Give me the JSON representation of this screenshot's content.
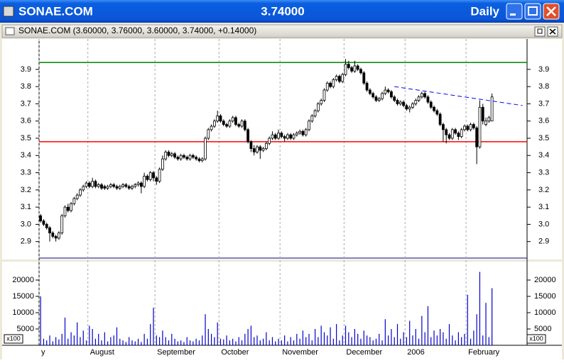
{
  "window": {
    "symbol": "SONAE.COM",
    "price": "3.74000",
    "period": "Daily"
  },
  "subwindow": {
    "title": "SONAE.COM (3.60000, 3.76000, 3.60000, 3.74000, +0.14000)"
  },
  "chart_data": {
    "type": "candlestick",
    "grid": true,
    "xlim": [
      -0.5,
      159.5
    ],
    "xticks": [
      {
        "value": -0.5,
        "label": "y"
      },
      {
        "value": 15.5,
        "label": "August"
      },
      {
        "value": 37.5,
        "label": "September"
      },
      {
        "value": 58.5,
        "label": "October"
      },
      {
        "value": 78.5,
        "label": "November"
      },
      {
        "value": 99.5,
        "label": "December"
      },
      {
        "value": 119.5,
        "label": "2006"
      },
      {
        "value": 139.5,
        "label": "February"
      }
    ],
    "ylim": [
      2.8,
      4.06
    ],
    "yticks": [
      {
        "value": 2.9,
        "label": "2.9"
      },
      {
        "value": 3,
        "label": "3.0"
      },
      {
        "value": 3.1,
        "label": "3.1"
      },
      {
        "value": 3.2,
        "label": "3.2"
      },
      {
        "value": 3.3,
        "label": "3.3"
      },
      {
        "value": 3.4,
        "label": "3.4"
      },
      {
        "value": 3.5,
        "label": "3.5"
      },
      {
        "value": 3.6,
        "label": "3.6"
      },
      {
        "value": 3.7,
        "label": "3.7"
      },
      {
        "value": 3.8,
        "label": "3.8"
      },
      {
        "value": 3.9,
        "label": "3.9"
      }
    ],
    "ohlc": [
      [
        3.05,
        3.06,
        3.01,
        3.02
      ],
      [
        3.02,
        3.03,
        2.99,
        3.0
      ],
      [
        3.0,
        3.01,
        2.97,
        2.98
      ],
      [
        2.98,
        2.99,
        2.9,
        2.95
      ],
      [
        2.95,
        2.96,
        2.92,
        2.93
      ],
      [
        2.93,
        2.94,
        2.9,
        2.92
      ],
      [
        2.92,
        2.96,
        2.91,
        2.95
      ],
      [
        2.95,
        3.06,
        2.94,
        3.05
      ],
      [
        3.05,
        3.11,
        3.04,
        3.1
      ],
      [
        3.1,
        3.12,
        3.07,
        3.08
      ],
      [
        3.08,
        3.13,
        3.07,
        3.12
      ],
      [
        3.12,
        3.16,
        3.11,
        3.15
      ],
      [
        3.15,
        3.18,
        3.14,
        3.17
      ],
      [
        3.17,
        3.21,
        3.16,
        3.2
      ],
      [
        3.2,
        3.23,
        3.19,
        3.22
      ],
      [
        3.22,
        3.25,
        3.21,
        3.24
      ],
      [
        3.24,
        3.25,
        3.21,
        3.22
      ],
      [
        3.22,
        3.27,
        3.21,
        3.25
      ],
      [
        3.25,
        3.26,
        3.21,
        3.22
      ],
      [
        3.22,
        3.24,
        3.21,
        3.23
      ],
      [
        3.23,
        3.24,
        3.2,
        3.21
      ],
      [
        3.22,
        3.23,
        3.2,
        3.21
      ],
      [
        3.21,
        3.23,
        3.2,
        3.22
      ],
      [
        3.22,
        3.24,
        3.21,
        3.23
      ],
      [
        3.23,
        3.24,
        3.21,
        3.22
      ],
      [
        3.22,
        3.23,
        3.2,
        3.21
      ],
      [
        3.21,
        3.23,
        3.2,
        3.22
      ],
      [
        3.22,
        3.24,
        3.21,
        3.23
      ],
      [
        3.23,
        3.24,
        3.21,
        3.22
      ],
      [
        3.22,
        3.23,
        3.2,
        3.21
      ],
      [
        3.21,
        3.23,
        3.2,
        3.22
      ],
      [
        3.22,
        3.24,
        3.21,
        3.23
      ],
      [
        3.23,
        3.25,
        3.22,
        3.24
      ],
      [
        3.24,
        3.25,
        3.18,
        3.22
      ],
      [
        3.22,
        3.3,
        3.21,
        3.28
      ],
      [
        3.28,
        3.29,
        3.25,
        3.26
      ],
      [
        3.26,
        3.31,
        3.25,
        3.3
      ],
      [
        3.3,
        3.31,
        3.25,
        3.27
      ],
      [
        3.27,
        3.28,
        3.23,
        3.25
      ],
      [
        3.25,
        3.33,
        3.24,
        3.32
      ],
      [
        3.32,
        3.4,
        3.31,
        3.38
      ],
      [
        3.38,
        3.43,
        3.37,
        3.42
      ],
      [
        3.42,
        3.43,
        3.39,
        3.4
      ],
      [
        3.4,
        3.42,
        3.39,
        3.41
      ],
      [
        3.41,
        3.42,
        3.38,
        3.39
      ],
      [
        3.39,
        3.4,
        3.37,
        3.38
      ],
      [
        3.38,
        3.41,
        3.37,
        3.4
      ],
      [
        3.4,
        3.41,
        3.38,
        3.39
      ],
      [
        3.39,
        3.4,
        3.37,
        3.38
      ],
      [
        3.38,
        3.41,
        3.37,
        3.4
      ],
      [
        3.4,
        3.41,
        3.38,
        3.39
      ],
      [
        3.39,
        3.4,
        3.37,
        3.38
      ],
      [
        3.38,
        3.39,
        3.36,
        3.37
      ],
      [
        3.37,
        3.39,
        3.36,
        3.38
      ],
      [
        3.38,
        3.51,
        3.37,
        3.5
      ],
      [
        3.5,
        3.56,
        3.49,
        3.55
      ],
      [
        3.55,
        3.58,
        3.54,
        3.57
      ],
      [
        3.57,
        3.61,
        3.56,
        3.6
      ],
      [
        3.6,
        3.66,
        3.59,
        3.63
      ],
      [
        3.63,
        3.64,
        3.59,
        3.6
      ],
      [
        3.6,
        3.61,
        3.57,
        3.58
      ],
      [
        3.58,
        3.59,
        3.56,
        3.57
      ],
      [
        3.57,
        3.61,
        3.56,
        3.6
      ],
      [
        3.6,
        3.63,
        3.59,
        3.62
      ],
      [
        3.62,
        3.63,
        3.57,
        3.58
      ],
      [
        3.58,
        3.59,
        3.56,
        3.57
      ],
      [
        3.57,
        3.61,
        3.56,
        3.6
      ],
      [
        3.6,
        3.61,
        3.54,
        3.55
      ],
      [
        3.55,
        3.56,
        3.47,
        3.48
      ],
      [
        3.48,
        3.49,
        3.42,
        3.44
      ],
      [
        3.44,
        3.46,
        3.4,
        3.42
      ],
      [
        3.42,
        3.46,
        3.41,
        3.45
      ],
      [
        3.45,
        3.46,
        3.38,
        3.43
      ],
      [
        3.43,
        3.45,
        3.42,
        3.44
      ],
      [
        3.44,
        3.48,
        3.43,
        3.47
      ],
      [
        3.47,
        3.51,
        3.46,
        3.5
      ],
      [
        3.5,
        3.54,
        3.49,
        3.52
      ],
      [
        3.52,
        3.53,
        3.49,
        3.5
      ],
      [
        3.5,
        3.55,
        3.49,
        3.53
      ],
      [
        3.53,
        3.54,
        3.5,
        3.51
      ],
      [
        3.51,
        3.52,
        3.48,
        3.5
      ],
      [
        3.5,
        3.53,
        3.49,
        3.52
      ],
      [
        3.52,
        3.53,
        3.49,
        3.5
      ],
      [
        3.5,
        3.53,
        3.49,
        3.52
      ],
      [
        3.52,
        3.54,
        3.51,
        3.53
      ],
      [
        3.53,
        3.55,
        3.52,
        3.54
      ],
      [
        3.54,
        3.55,
        3.51,
        3.52
      ],
      [
        3.52,
        3.56,
        3.51,
        3.55
      ],
      [
        3.55,
        3.61,
        3.54,
        3.6
      ],
      [
        3.6,
        3.64,
        3.59,
        3.63
      ],
      [
        3.63,
        3.67,
        3.62,
        3.66
      ],
      [
        3.66,
        3.71,
        3.65,
        3.7
      ],
      [
        3.7,
        3.73,
        3.69,
        3.72
      ],
      [
        3.72,
        3.79,
        3.71,
        3.78
      ],
      [
        3.78,
        3.83,
        3.77,
        3.82
      ],
      [
        3.82,
        3.83,
        3.79,
        3.8
      ],
      [
        3.8,
        3.85,
        3.79,
        3.84
      ],
      [
        3.84,
        3.87,
        3.83,
        3.86
      ],
      [
        3.86,
        3.87,
        3.82,
        3.83
      ],
      [
        3.83,
        3.88,
        3.82,
        3.87
      ],
      [
        3.87,
        3.96,
        3.86,
        3.93
      ],
      [
        3.93,
        3.95,
        3.9,
        3.91
      ],
      [
        3.91,
        3.92,
        3.88,
        3.89
      ],
      [
        3.89,
        3.95,
        3.88,
        3.92
      ],
      [
        3.92,
        3.93,
        3.89,
        3.9
      ],
      [
        3.9,
        3.91,
        3.87,
        3.88
      ],
      [
        3.88,
        3.89,
        3.81,
        3.82
      ],
      [
        3.82,
        3.83,
        3.77,
        3.78
      ],
      [
        3.78,
        3.79,
        3.75,
        3.76
      ],
      [
        3.76,
        3.77,
        3.73,
        3.74
      ],
      [
        3.74,
        3.75,
        3.71,
        3.72
      ],
      [
        3.72,
        3.74,
        3.71,
        3.73
      ],
      [
        3.73,
        3.77,
        3.72,
        3.76
      ],
      [
        3.76,
        3.8,
        3.75,
        3.78
      ],
      [
        3.78,
        3.79,
        3.76,
        3.77
      ],
      [
        3.77,
        3.78,
        3.73,
        3.74
      ],
      [
        3.74,
        3.75,
        3.71,
        3.72
      ],
      [
        3.72,
        3.73,
        3.69,
        3.7
      ],
      [
        3.7,
        3.72,
        3.69,
        3.71
      ],
      [
        3.71,
        3.72,
        3.68,
        3.69
      ],
      [
        3.69,
        3.7,
        3.66,
        3.67
      ],
      [
        3.67,
        3.69,
        3.65,
        3.68
      ],
      [
        3.68,
        3.71,
        3.67,
        3.7
      ],
      [
        3.7,
        3.73,
        3.69,
        3.72
      ],
      [
        3.72,
        3.75,
        3.71,
        3.74
      ],
      [
        3.74,
        3.77,
        3.73,
        3.76
      ],
      [
        3.76,
        3.77,
        3.73,
        3.74
      ],
      [
        3.74,
        3.75,
        3.7,
        3.71
      ],
      [
        3.71,
        3.72,
        3.67,
        3.68
      ],
      [
        3.68,
        3.69,
        3.65,
        3.66
      ],
      [
        3.66,
        3.67,
        3.63,
        3.64
      ],
      [
        3.64,
        3.65,
        3.57,
        3.58
      ],
      [
        3.58,
        3.59,
        3.48,
        3.55
      ],
      [
        3.55,
        3.56,
        3.47,
        3.52
      ],
      [
        3.52,
        3.53,
        3.49,
        3.5
      ],
      [
        3.5,
        3.56,
        3.49,
        3.55
      ],
      [
        3.55,
        3.56,
        3.52,
        3.53
      ],
      [
        3.53,
        3.54,
        3.49,
        3.51
      ],
      [
        3.51,
        3.56,
        3.5,
        3.55
      ],
      [
        3.55,
        3.58,
        3.54,
        3.57
      ],
      [
        3.57,
        3.58,
        3.54,
        3.55
      ],
      [
        3.55,
        3.59,
        3.54,
        3.58
      ],
      [
        3.58,
        3.59,
        3.55,
        3.56
      ],
      [
        3.56,
        3.57,
        3.35,
        3.45
      ],
      [
        3.45,
        3.72,
        3.44,
        3.68
      ],
      [
        3.68,
        3.7,
        3.58,
        3.6
      ],
      [
        3.58,
        3.62,
        3.57,
        3.6
      ],
      [
        3.6,
        3.63,
        3.59,
        3.62
      ],
      [
        3.6,
        3.76,
        3.6,
        3.74
      ]
    ],
    "hlines": [
      {
        "value": 3.94,
        "color": "#008000"
      },
      {
        "value": 3.48,
        "color": "#ff0000"
      }
    ],
    "trendline": {
      "x": [
        116,
        158
      ],
      "values": [
        3.8,
        3.69
      ],
      "color": "#0000ff"
    },
    "volume_color": "#0000cc",
    "volume_unit": "x100",
    "volume_ylim": [
      0,
      25000
    ],
    "volume_yticks": [
      5000,
      10000,
      15000,
      20000
    ],
    "volume": [
      15000,
      2000,
      1500,
      3000,
      1200,
      2500,
      1800,
      3500,
      8500,
      2000,
      4000,
      3000,
      7000,
      2500,
      4500,
      1500,
      6000,
      5000,
      2000,
      3500,
      1500,
      4000,
      1200,
      2500,
      3000,
      5500,
      2000,
      1500,
      1000,
      2500,
      1500,
      1200,
      2000,
      1000,
      3500,
      2000,
      6500,
      11500,
      3000,
      2500,
      4500,
      2500,
      1500,
      3500,
      2000,
      1200,
      1500,
      1000,
      2500,
      1500,
      1200,
      2000,
      1500,
      3000,
      9500,
      5000,
      3500,
      2500,
      7000,
      2000,
      1800,
      3000,
      1500,
      2000,
      1200,
      2500,
      1500,
      3500,
      5000,
      6000,
      2500,
      3000,
      1500,
      2000,
      4000,
      1500,
      2500,
      1200,
      2000,
      1500,
      3000,
      1200,
      2500,
      1500,
      3500,
      2000,
      4500,
      2500,
      3500,
      1500,
      5000,
      2500,
      6000,
      4000,
      3000,
      5500,
      2000,
      6500,
      1500,
      3000,
      6000,
      4000,
      2500,
      5000,
      3500,
      2000,
      4500,
      3000,
      2500,
      1500,
      2000,
      3500,
      1500,
      8000,
      3000,
      5000,
      2500,
      6500,
      2000,
      4000,
      2500,
      7500,
      3000,
      5000,
      2000,
      9000,
      4000,
      12000,
      2500,
      4500,
      3000,
      5000,
      4000,
      2000,
      6500,
      3000,
      1500,
      4000,
      2500,
      3500,
      15500,
      2000,
      4500,
      9500,
      22500,
      3000,
      13000,
      2500,
      17500
    ]
  }
}
